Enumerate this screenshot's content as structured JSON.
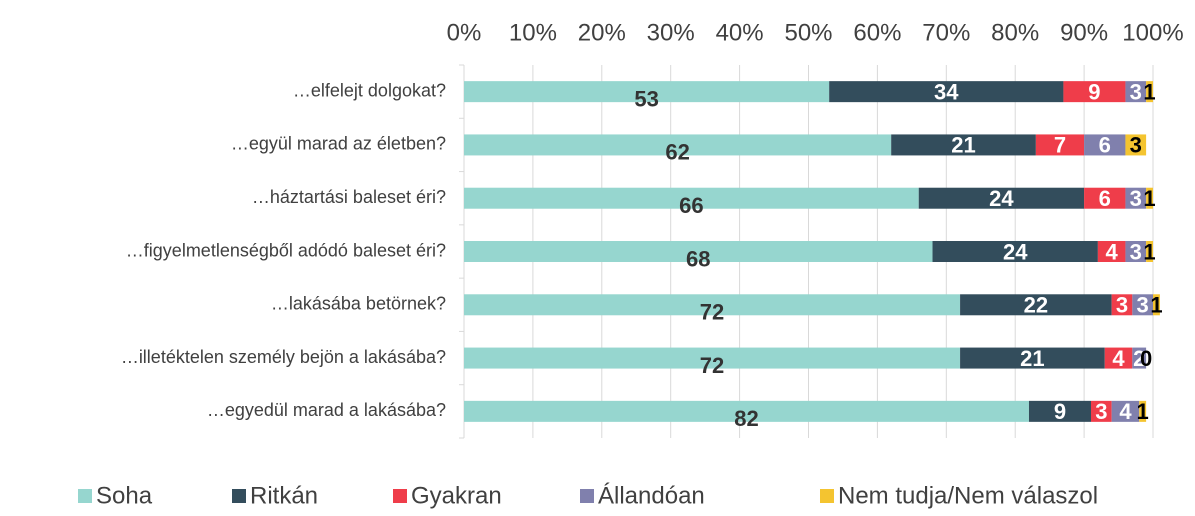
{
  "chart_data": {
    "type": "stacked_bar_horizontal",
    "categories": [
      "…elfelejt dolgokat?",
      "…együl marad az életben?",
      "…háztartási baleset éri?",
      "…figyelmetlenségből adódó baleset éri?",
      "…lakásába betörnek?",
      "…illetéktelen személy bejön a lakásába?",
      "…egyedül marad a lakásába?"
    ],
    "series": [
      {
        "name": "Soha",
        "color": "#96d6cf",
        "values": [
          53,
          62,
          66,
          68,
          72,
          72,
          82
        ]
      },
      {
        "name": "Ritkán",
        "color": "#334d5c",
        "values": [
          34,
          21,
          24,
          24,
          22,
          21,
          9
        ]
      },
      {
        "name": "Gyakran",
        "color": "#ef3d4a",
        "values": [
          9,
          7,
          6,
          4,
          3,
          4,
          3
        ]
      },
      {
        "name": "Állandóan",
        "color": "#8080ad",
        "values": [
          3,
          6,
          3,
          3,
          3,
          2,
          4
        ]
      },
      {
        "name": "Nem tudja/Nem válaszol",
        "color": "#f4c430",
        "values": [
          1,
          3,
          1,
          1,
          1,
          0,
          1
        ]
      }
    ],
    "xlim": [
      0,
      100
    ],
    "xticks": [
      {
        "value": 0,
        "label": "0%"
      },
      {
        "value": 10,
        "label": "10%"
      },
      {
        "value": 20,
        "label": "20%"
      },
      {
        "value": 30,
        "label": "30%"
      },
      {
        "value": 40,
        "label": "40%"
      },
      {
        "value": 50,
        "label": "50%"
      },
      {
        "value": 60,
        "label": "60%"
      },
      {
        "value": 70,
        "label": "70%"
      },
      {
        "value": 80,
        "label": "80%"
      },
      {
        "value": 90,
        "label": "90%"
      },
      {
        "value": 100,
        "label": "100%"
      }
    ],
    "grid": true,
    "legend": "bottom"
  }
}
